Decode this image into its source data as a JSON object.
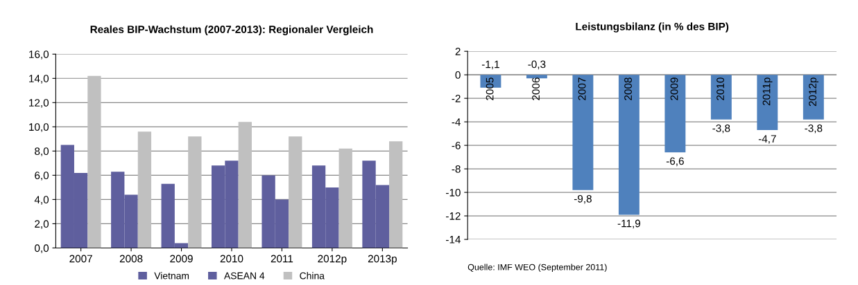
{
  "chart_data": [
    {
      "type": "bar",
      "title": "Reales BIP-Wachstum (2007-2013): Regionaler Vergleich",
      "categories": [
        "2007",
        "2008",
        "2009",
        "2010",
        "2011",
        "2012p",
        "2013p"
      ],
      "series": [
        {
          "name": "Vietnam",
          "color": "#5f5f9e",
          "values": [
            8.5,
            6.3,
            5.3,
            6.8,
            6.0,
            6.8,
            7.2
          ]
        },
        {
          "name": "ASEAN 4",
          "color": "#5f5f9e",
          "values": [
            6.2,
            4.4,
            0.4,
            7.2,
            4.0,
            5.0,
            5.2
          ]
        },
        {
          "name": "China",
          "color": "#c0c0c0",
          "values": [
            14.2,
            9.6,
            9.2,
            10.4,
            9.2,
            8.2,
            8.8
          ]
        }
      ],
      "ylim": [
        0,
        16
      ],
      "yticks": [
        {
          "value": 0,
          "label": "0,0"
        },
        {
          "value": 2,
          "label": "2,0"
        },
        {
          "value": 4,
          "label": "4,0"
        },
        {
          "value": 6,
          "label": "6,0"
        },
        {
          "value": 8,
          "label": "8,0"
        },
        {
          "value": 10,
          "label": "10,0"
        },
        {
          "value": 12,
          "label": "12,0"
        },
        {
          "value": 14,
          "label": "14,0"
        },
        {
          "value": 16,
          "label": "16,0"
        }
      ],
      "grid": "y",
      "legend": "bottom"
    },
    {
      "type": "bar",
      "title": "Leistungsbilanz (in % des BIP)",
      "categories": [
        "2005",
        "2006",
        "2007",
        "2008",
        "2009",
        "2010",
        "2011p",
        "2012p"
      ],
      "values": [
        -1.1,
        -0.3,
        -9.8,
        -11.9,
        -6.6,
        -3.8,
        -4.7,
        -3.8
      ],
      "color": "#4f81bd",
      "value_labels": [
        "-1,1",
        "-0,3",
        "-9,8",
        "-11,9",
        "-6,6",
        "-3,8",
        "-4,7",
        "-3,8"
      ],
      "ylim": [
        -14,
        2
      ],
      "yticks": [
        -14,
        -12,
        -10,
        -8,
        -6,
        -4,
        -2,
        0,
        2
      ],
      "grid": "y",
      "annotations": [
        "Quelle: IMF WEO (September 2011)"
      ]
    }
  ]
}
